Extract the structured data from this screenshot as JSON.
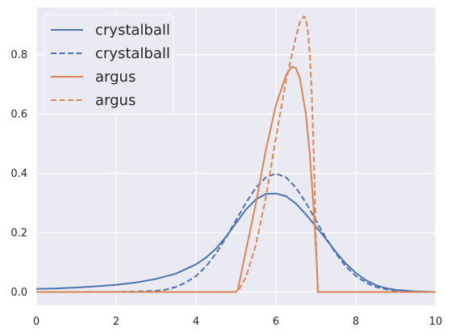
{
  "chart_data": {
    "type": "line",
    "title": "",
    "xlabel": "",
    "ylabel": "",
    "xlim": [
      0,
      10
    ],
    "ylim": [
      -0.045,
      0.96
    ],
    "xticks": [
      0,
      2,
      4,
      6,
      8,
      10
    ],
    "yticks": [
      0.0,
      0.2,
      0.4,
      0.6,
      0.8
    ],
    "xtick_labels": [
      "0",
      "2",
      "4",
      "6",
      "8",
      "10"
    ],
    "ytick_labels": [
      "0.0",
      "0.2",
      "0.4",
      "0.6",
      "0.8"
    ],
    "grid": true,
    "legend_position": "top-left",
    "background": "#eaeaf2",
    "series": [
      {
        "name": "crystalball",
        "style": "solid",
        "color": "#4c72b0",
        "x": [
          0,
          0.5,
          1,
          1.5,
          2,
          2.5,
          3,
          3.5,
          4,
          4.25,
          4.5,
          4.75,
          5,
          5.25,
          5.5,
          5.75,
          6,
          6.25,
          6.5,
          6.75,
          7,
          7.25,
          7.5,
          7.75,
          8,
          8.25,
          8.5,
          8.75,
          9,
          9.5,
          10
        ],
        "y": [
          0.01,
          0.012,
          0.015,
          0.019,
          0.024,
          0.032,
          0.044,
          0.062,
          0.093,
          0.116,
          0.146,
          0.186,
          0.232,
          0.278,
          0.312,
          0.331,
          0.332,
          0.323,
          0.298,
          0.262,
          0.221,
          0.179,
          0.135,
          0.096,
          0.064,
          0.04,
          0.023,
          0.013,
          0.007,
          0.002,
          0.0
        ]
      },
      {
        "name": "crystalball",
        "style": "dashed",
        "color": "#4c72b0",
        "x": [
          0,
          1,
          2,
          2.5,
          3,
          3.25,
          3.5,
          3.75,
          4,
          4.25,
          4.5,
          4.75,
          5,
          5.25,
          5.5,
          5.75,
          6,
          6.25,
          6.5,
          6.75,
          7,
          7.25,
          7.5,
          7.75,
          8,
          8.25,
          8.5,
          8.75,
          9,
          9.5,
          10
        ],
        "y": [
          0.0,
          0.0,
          0.0005,
          0.0015,
          0.004,
          0.008,
          0.017,
          0.032,
          0.054,
          0.086,
          0.13,
          0.183,
          0.242,
          0.301,
          0.352,
          0.387,
          0.399,
          0.387,
          0.352,
          0.301,
          0.242,
          0.183,
          0.13,
          0.086,
          0.054,
          0.032,
          0.017,
          0.009,
          0.004,
          0.001,
          0.0
        ]
      },
      {
        "name": "argus",
        "style": "solid",
        "color": "#dd8452",
        "x": [
          0,
          5,
          5.05,
          5.25,
          5.5,
          5.75,
          6,
          6.25,
          6.4,
          6.5,
          6.6,
          6.75,
          6.85,
          6.95,
          7.02,
          7.05,
          8,
          10
        ],
        "y": [
          0.0,
          0.0,
          0.01,
          0.14,
          0.3,
          0.48,
          0.63,
          0.73,
          0.76,
          0.755,
          0.72,
          0.6,
          0.46,
          0.27,
          0.1,
          0.0,
          0.0,
          0.0
        ]
      },
      {
        "name": "argus",
        "style": "dashed",
        "color": "#dd8452",
        "x": [
          0,
          5,
          5.05,
          5.25,
          5.5,
          5.75,
          6,
          6.25,
          6.5,
          6.6,
          6.7,
          6.75,
          6.8,
          6.85,
          6.9,
          6.95,
          7.0,
          7.05,
          8,
          10
        ],
        "y": [
          0.0,
          0.0,
          0.003,
          0.05,
          0.16,
          0.32,
          0.52,
          0.71,
          0.86,
          0.91,
          0.93,
          0.92,
          0.88,
          0.8,
          0.66,
          0.45,
          0.18,
          0.0,
          0.0,
          0.0
        ]
      }
    ]
  }
}
